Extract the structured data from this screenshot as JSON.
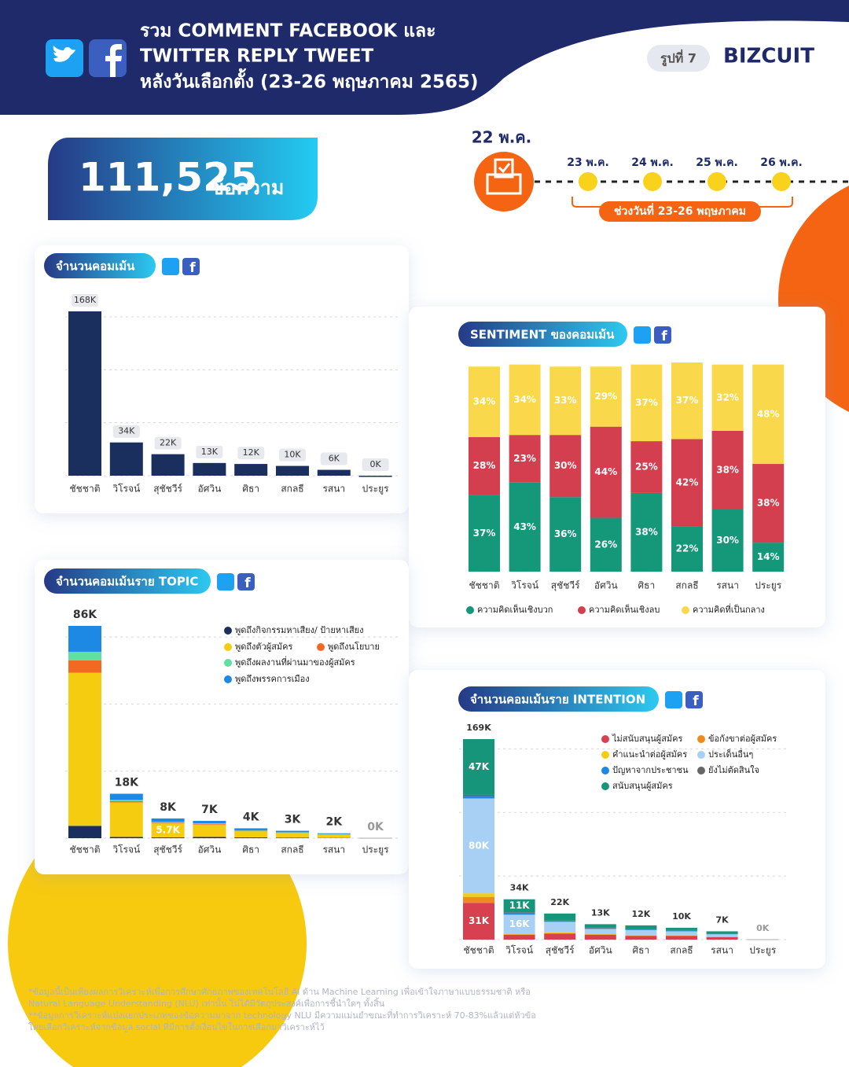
{
  "header": {
    "title_lines": [
      "รวม COMMENT  FACEBOOK และ",
      "TWITTER REPLY TWEET",
      "หลังวันเลือกตั้ง (23-26 พฤษภาคม 2565)"
    ],
    "badge": "รูปที่ 7",
    "logo": "BIZCUIT"
  },
  "summary": {
    "count": "111,525",
    "unit": "ข้อความ"
  },
  "timeline": {
    "election_day": "22 พ.ค.",
    "dates": [
      "23 พ.ค.",
      "24 พ.ค.",
      "25 พ.ค.",
      "26 พ.ค."
    ],
    "range": "ช่วงวันที่  23-26 พฤษภาคม"
  },
  "chart_data": [
    {
      "type": "bar",
      "title": "จำนวนคอมเม้น",
      "color": "#1b2f5e",
      "categories": [
        "ชัชชาติ",
        "วิโรจน์",
        "สุชัชวีร์",
        "อัศวิน",
        "ศิธา",
        "สกลธี",
        "รสนา",
        "ประยูร"
      ],
      "values": [
        168000,
        34000,
        22000,
        13000,
        12000,
        10000,
        6000,
        0
      ],
      "value_labels": [
        "168K",
        "34K",
        "22K",
        "13K",
        "12K",
        "10K",
        "6K",
        "0K"
      ]
    },
    {
      "type": "stacked_bar",
      "title": "SENTIMENT ของคอมเม้น",
      "categories": [
        "ชัชชาติ",
        "วิโรจน์",
        "สุชัชวีร์",
        "อัศวิน",
        "ศิธา",
        "สกลธี",
        "รสนา",
        "ประยูร"
      ],
      "series": [
        {
          "name": "ความคิดเห็นเชิงบวก",
          "color": "#15977a",
          "values": [
            37,
            43,
            36,
            26,
            38,
            22,
            30,
            14
          ],
          "value_labels": [
            "37%",
            "43%",
            "36%",
            "26%",
            "38%",
            "22%",
            "30%",
            "14%"
          ]
        },
        {
          "name": "ความคิดเห็นเชิงลบ",
          "color": "#d43f4f",
          "values": [
            28,
            23,
            30,
            44,
            25,
            42,
            38,
            38
          ],
          "value_labels": [
            "28%",
            "23%",
            "30%",
            "44%",
            "25%",
            "42%",
            "38%",
            "38%"
          ]
        },
        {
          "name": "ความคิดที่เป็นกลาง",
          "color": "#f9d84b",
          "values": [
            34,
            34,
            33,
            29,
            37,
            37,
            32,
            48
          ],
          "value_labels": [
            "34%",
            "34%",
            "33%",
            "29%",
            "37%",
            "37%",
            "32%",
            "48%"
          ]
        }
      ]
    },
    {
      "type": "stacked_bar",
      "title": "จำนวนคอมเม้นราย TOPIC",
      "categories": [
        "ชัชชาติ",
        "วิโรจน์",
        "สุชัชวีร์",
        "อัศวิน",
        "ศิธา",
        "สกลธี",
        "รสนา",
        "ประยูร"
      ],
      "totals": [
        86000,
        18000,
        8000,
        7000,
        4000,
        3000,
        2000,
        0
      ],
      "total_labels": [
        "86K",
        "18K",
        "8K",
        "7K",
        "4K",
        "3K",
        "2K",
        "0K"
      ],
      "series": [
        {
          "name": "พูดถึงกิจกรรมหาเสียง/ ป้ายหาเสียง",
          "color": "#1b2f5e",
          "values": [
            5000,
            500,
            300,
            500,
            300,
            200,
            100,
            0
          ]
        },
        {
          "name": "พูดถึงตัวผู้สมัคร",
          "color": "#f5cc10",
          "values": [
            62000,
            14000,
            5700,
            5000,
            2500,
            2000,
            1400,
            0
          ],
          "value_labels": [
            null,
            null,
            "5.7K",
            null,
            null,
            null,
            null,
            null
          ]
        },
        {
          "name": "พูดถึงนโยบาย",
          "color": "#f26a22",
          "values": [
            5000,
            500,
            300,
            300,
            200,
            100,
            100,
            0
          ]
        },
        {
          "name": "พูดถึงผลงานที่ผ่านมาของผู้สมัคร",
          "color": "#5fe0a0",
          "values": [
            3500,
            500,
            300,
            200,
            200,
            100,
            100,
            0
          ]
        },
        {
          "name": "พูดถึงพรรคการเมือง",
          "color": "#1e88e5",
          "values": [
            10500,
            2500,
            1400,
            1000,
            800,
            600,
            300,
            0
          ]
        }
      ]
    },
    {
      "type": "stacked_bar",
      "title": "จำนวนคอมเม้นราย INTENTION",
      "categories": [
        "ชัชชาติ",
        "วิโรจน์",
        "สุชัชวีร์",
        "อัศวิน",
        "ศิธา",
        "สกลธี",
        "รสนา",
        "ประยูร"
      ],
      "totals": [
        169000,
        34000,
        22000,
        13000,
        12000,
        10000,
        7000,
        0
      ],
      "total_labels": [
        "169K",
        "34K",
        "22K",
        "13K",
        "12K",
        "10K",
        "7K",
        "0K"
      ],
      "series": [
        {
          "name": "ไม่สนับสนุนผู้สมัคร",
          "color": "#d9404f",
          "values": [
            31000,
            4000,
            5000,
            4000,
            3000,
            3000,
            2000,
            0
          ],
          "value_labels": [
            "31K",
            null,
            null,
            null,
            null,
            null,
            null,
            null
          ]
        },
        {
          "name": "ข้อกังขาต่อผู้สมัคร",
          "color": "#f08a1c",
          "values": [
            5000,
            500,
            500,
            500,
            500,
            500,
            300,
            0
          ]
        },
        {
          "name": "คำแนะนำต่อผู้สมัคร",
          "color": "#f5cc10",
          "values": [
            3000,
            500,
            500,
            500,
            500,
            500,
            200,
            0
          ]
        },
        {
          "name": "ประเด็นอื่นๆ",
          "color": "#a8d0f5",
          "values": [
            80000,
            16000,
            9000,
            4000,
            4000,
            3000,
            2000,
            0
          ],
          "value_labels": [
            "80K",
            "16K",
            null,
            null,
            null,
            null,
            null,
            null
          ]
        },
        {
          "name": "ปัญหาจากประชาชน",
          "color": "#1e88e5",
          "values": [
            2000,
            1500,
            500,
            500,
            500,
            500,
            200,
            0
          ]
        },
        {
          "name": "ยังไม่ตัดสินใจ",
          "color": "#666666",
          "values": [
            1000,
            500,
            500,
            500,
            500,
            500,
            300,
            0
          ]
        },
        {
          "name": "สนับสนุนผู้สมัคร",
          "color": "#16957a",
          "values": [
            47000,
            11000,
            6000,
            3000,
            3000,
            2000,
            2000,
            0
          ],
          "value_labels": [
            "47K",
            "11K",
            null,
            null,
            null,
            null,
            null,
            null
          ]
        }
      ]
    }
  ],
  "footnote": [
    "*ข้อมูลนี้เป็นเพียงผลการวิเคราะห์เพื่อการศึกษาศักยภาพของเทคโนโลยี AI ด้าน Machine Learning เพื่อเข้าใจภาษาแบบธรรมชาติ หรือ",
    "Natural Language Understanding (NLU) เท่านั้น ไม่ได้มีวัตถุประสงค์เพื่อการชี้นำใดๆ ทั้งสิ้น",
    "**ข้อมูลการวิเคราะห์แบ่งแยกประเภทของข้อความมาจาก technology NLU มีความแม่นยำขณะที่ทำการวิเคราะห์ 70-83%แล้วแต่หัวข้อ",
    "โดยเลือกวิเคราะห์จากข้อมูล social ที่มีการตั้งเงื่อนไขในการเลือกมาวิเคราะห์ไว้"
  ]
}
